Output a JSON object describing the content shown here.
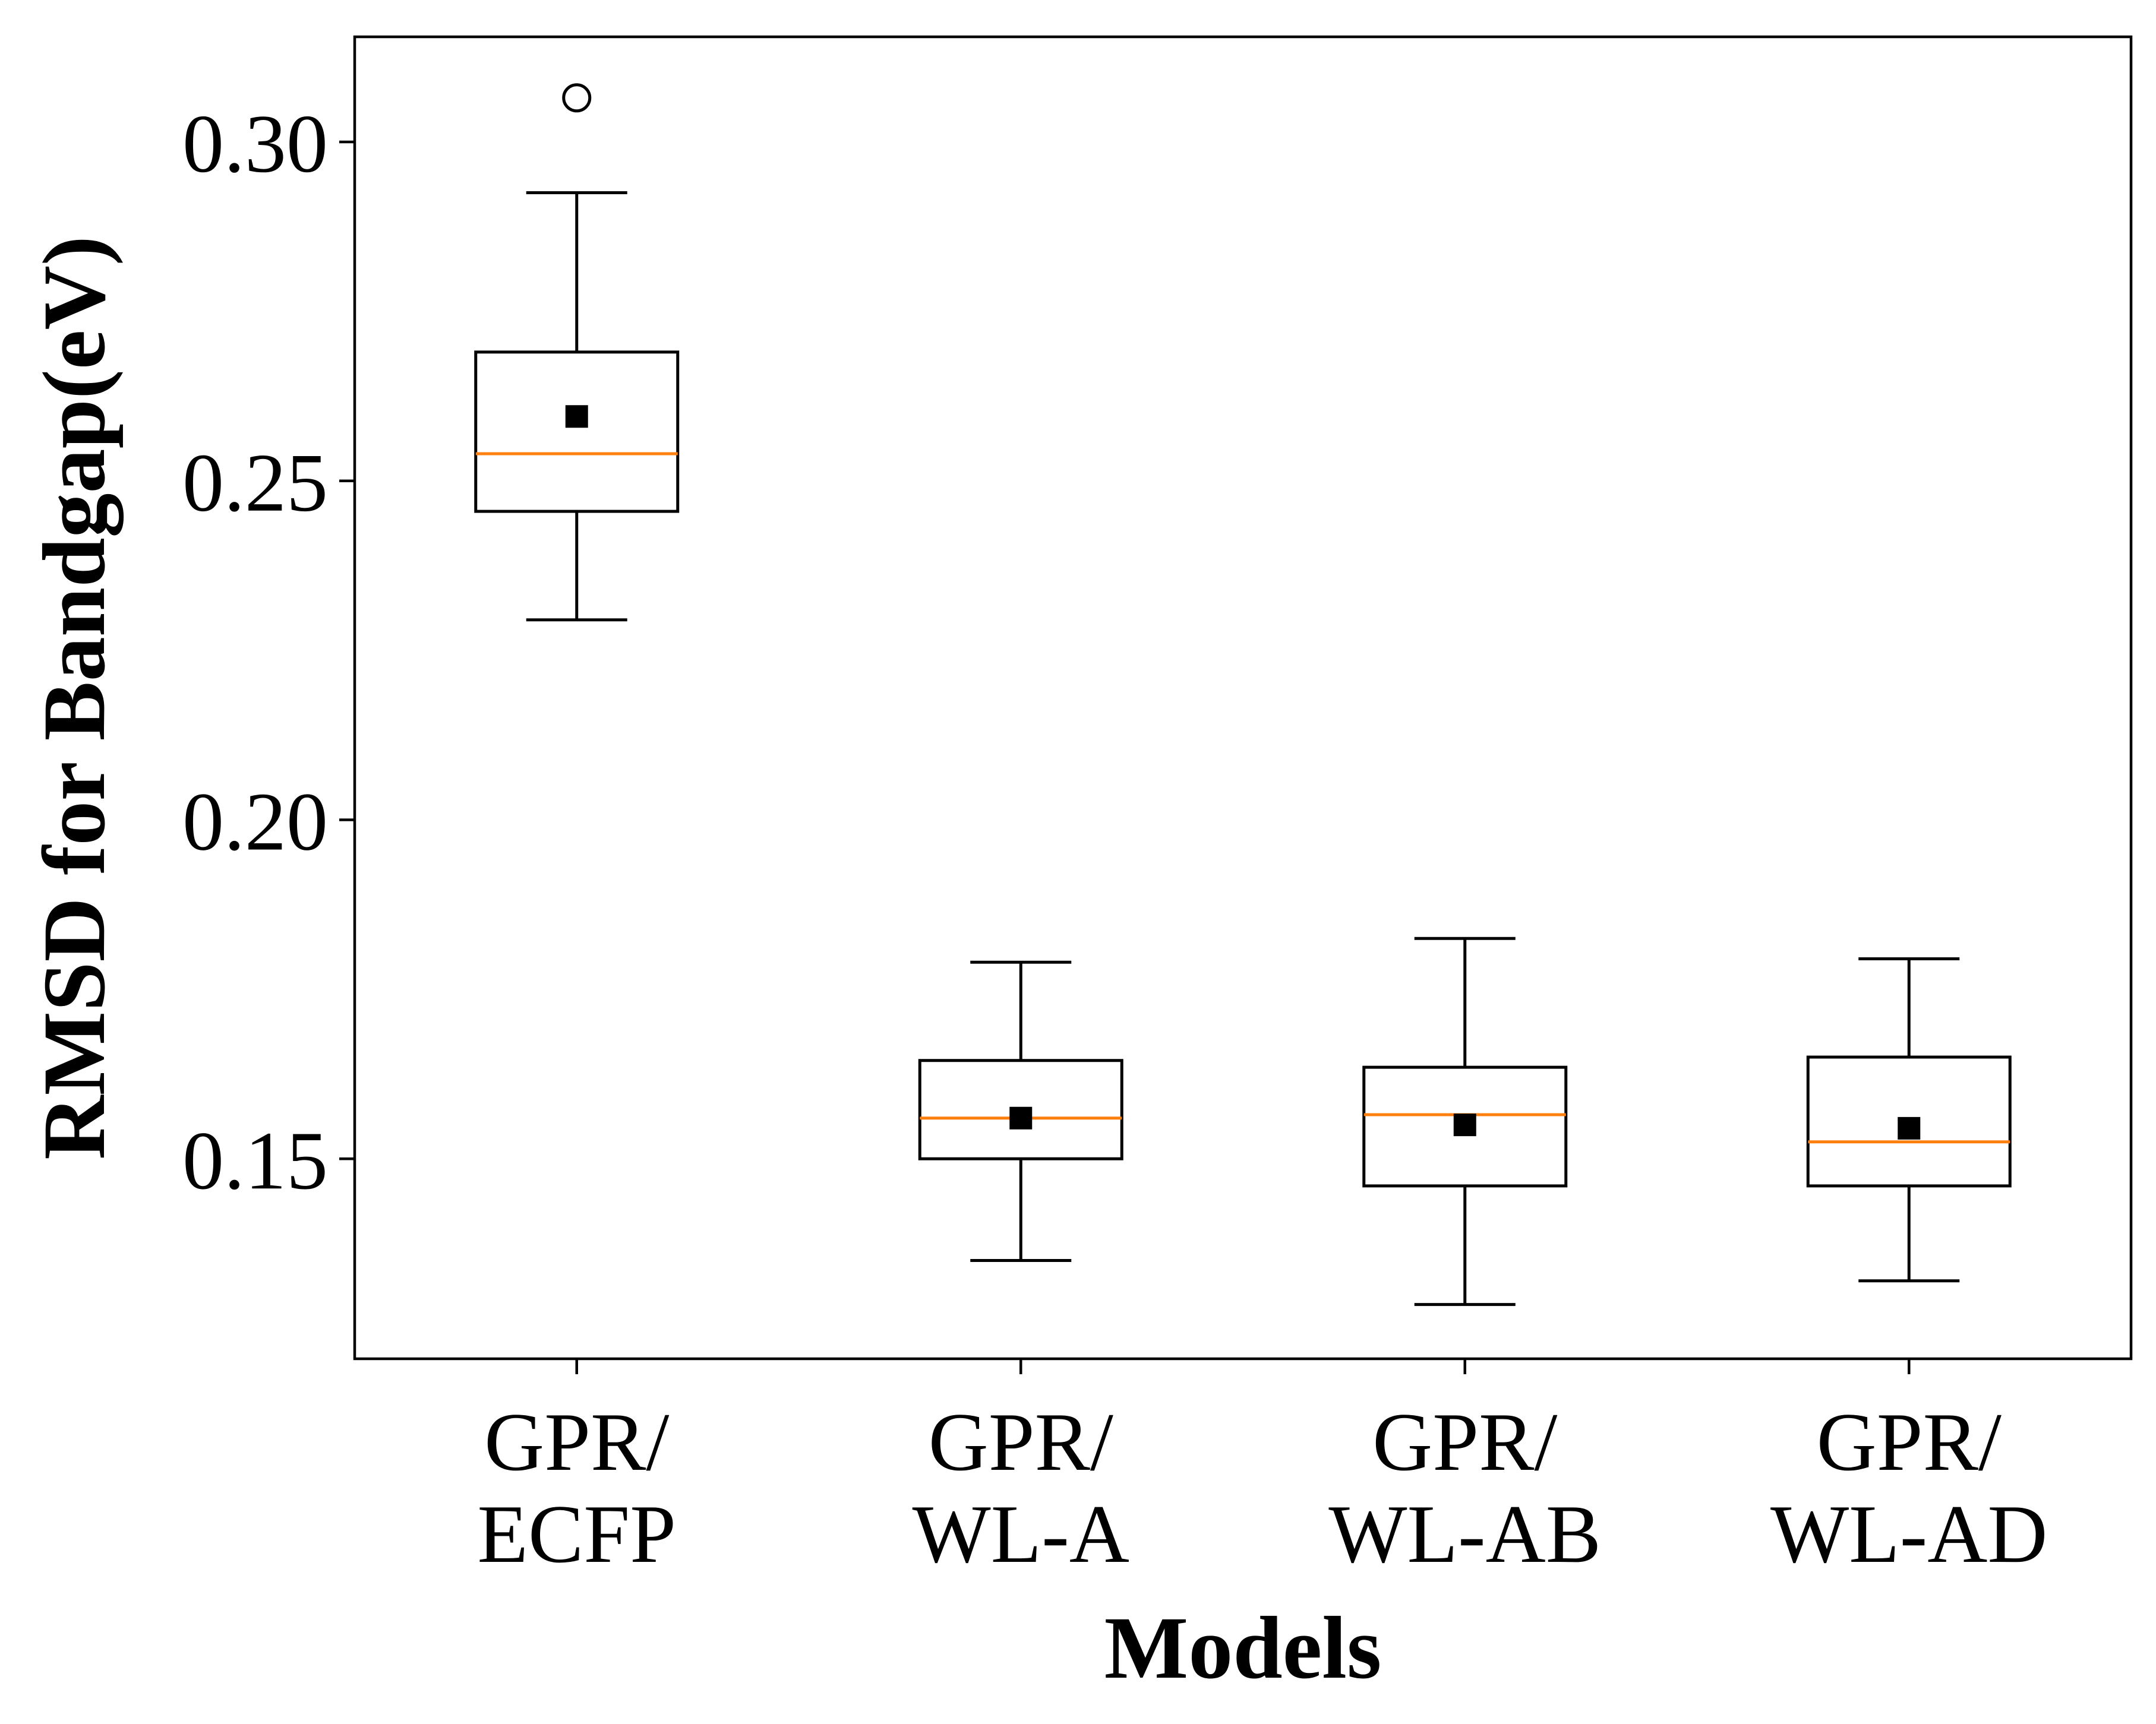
{
  "chart_data": {
    "type": "box",
    "title": "",
    "xlabel": "Models",
    "ylabel": "RMSD for Bandgap(eV)",
    "ylim": [
      0.1205,
      0.3155
    ],
    "yticks": [
      0.15,
      0.2,
      0.25,
      0.3
    ],
    "ytick_labels": [
      "0.15",
      "0.20",
      "0.25",
      "0.30"
    ],
    "grid": false,
    "legend": "none",
    "categories": [
      [
        "GPR/",
        "ECFP"
      ],
      [
        "GPR/",
        "WL-A"
      ],
      [
        "GPR/",
        "WL-AB"
      ],
      [
        "GPR/",
        "WL-AD"
      ]
    ],
    "boxes": [
      {
        "whisker_low": 0.2295,
        "q1": 0.2455,
        "median": 0.254,
        "q3": 0.269,
        "whisker_high": 0.2925,
        "mean": 0.2595,
        "outliers": [
          0.3065
        ]
      },
      {
        "whisker_low": 0.135,
        "q1": 0.15,
        "median": 0.156,
        "q3": 0.1645,
        "whisker_high": 0.179,
        "mean": 0.156,
        "outliers": []
      },
      {
        "whisker_low": 0.1285,
        "q1": 0.146,
        "median": 0.1565,
        "q3": 0.1635,
        "whisker_high": 0.1825,
        "mean": 0.155,
        "outliers": []
      },
      {
        "whisker_low": 0.132,
        "q1": 0.146,
        "median": 0.1525,
        "q3": 0.165,
        "whisker_high": 0.1795,
        "mean": 0.1545,
        "outliers": []
      }
    ],
    "colors": {
      "box": "#000000",
      "median": "#ff7f0e",
      "mean_marker": "#000000",
      "outlier": "#000000"
    }
  }
}
